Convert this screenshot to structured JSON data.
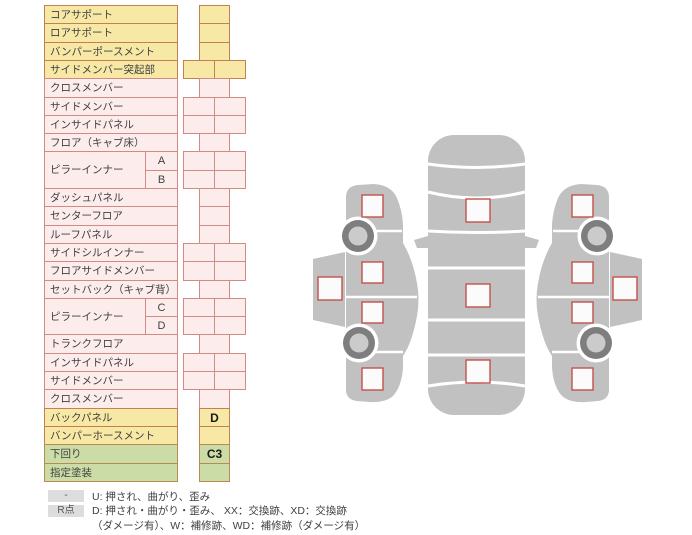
{
  "colors": {
    "yellow": {
      "fill": "#F7E8A5",
      "border": "#C28153"
    },
    "pink": {
      "fill": "#FCEDEC",
      "border": "#D18B85"
    },
    "green": {
      "fill": "#CBDCA6",
      "border": "#B98B52"
    },
    "car_gray": "#C1C1C1",
    "wheel_dark": "#7E7E7E",
    "wheel_inner": "#CBCBCB",
    "checkbox_fill": "#FBFBFB",
    "checkbox_border": "#C4504B",
    "badge_bg": "#DDDDDD"
  },
  "table": {
    "rows": [
      {
        "label": "コアサポート",
        "color": "yellow",
        "cells": "single",
        "value": ""
      },
      {
        "label": "ロアサポート",
        "color": "yellow",
        "cells": "single",
        "value": ""
      },
      {
        "label": "バンパーポースメント",
        "color": "yellow",
        "cells": "single",
        "value": ""
      },
      {
        "label": "サイドメンバー突起部",
        "color": "yellow",
        "cells": "double",
        "value": ""
      },
      {
        "label": "クロスメンバー",
        "color": "pink",
        "cells": "single",
        "value": ""
      },
      {
        "label": "サイドメンバー",
        "color": "pink",
        "cells": "double",
        "value": ""
      },
      {
        "label": "インサイドパネル",
        "color": "pink",
        "cells": "double",
        "value": ""
      },
      {
        "label": "フロア（キャブ床）",
        "color": "pink",
        "cells": "single",
        "value": ""
      },
      {
        "label": "ピラーインナー",
        "labelspan": 2,
        "sub": "A",
        "color": "pink",
        "cells": "double",
        "value": ""
      },
      {
        "sub": "B",
        "color": "pink",
        "cells": "double",
        "value": ""
      },
      {
        "label": "ダッシュパネル",
        "color": "pink",
        "cells": "single",
        "value": ""
      },
      {
        "label": "センターフロア",
        "color": "pink",
        "cells": "single",
        "value": ""
      },
      {
        "label": "ルーフパネル",
        "color": "pink",
        "cells": "single",
        "value": ""
      },
      {
        "label": "サイドシルインナー",
        "color": "pink",
        "cells": "double",
        "value": ""
      },
      {
        "label": "フロアサイドメンバー",
        "color": "pink",
        "cells": "double",
        "value": ""
      },
      {
        "label": "セットバック（キャブ背）",
        "color": "pink",
        "cells": "single",
        "value": ""
      },
      {
        "label": "ピラーインナー",
        "labelspan": 2,
        "sub": "C",
        "color": "pink",
        "cells": "double",
        "value": ""
      },
      {
        "sub": "D",
        "color": "pink",
        "cells": "double",
        "value": ""
      },
      {
        "label": "トランクフロア",
        "color": "pink",
        "cells": "single",
        "value": ""
      },
      {
        "label": "インサイドパネル",
        "color": "pink",
        "cells": "double",
        "value": ""
      },
      {
        "label": "サイドメンバー",
        "color": "pink",
        "cells": "double",
        "value": ""
      },
      {
        "label": "クロスメンバー",
        "color": "pink",
        "cells": "single",
        "value": ""
      },
      {
        "label": "バックパネル",
        "color": "yellow",
        "cells": "single",
        "value": "D"
      },
      {
        "label": "バンパーホースメント",
        "color": "yellow",
        "cells": "single",
        "value": ""
      },
      {
        "label": "下回り",
        "color": "green",
        "cells": "single",
        "value": "C3"
      },
      {
        "label": "指定塗装",
        "color": "green",
        "cells": "single",
        "value": ""
      }
    ]
  },
  "legend": {
    "badge1": "-",
    "line1": "U: 押され、曲がり、歪み",
    "badge2": "R点",
    "line2": "D: 押され・曲がり・歪み、 XX：交換跡、XD：交換跡",
    "line3": "（ダメージ有）、W：補修跡、WD：補修跡（ダメージ有）"
  },
  "diagram": {
    "views": [
      {
        "name": "side-view-left",
        "checkboxes": 5,
        "wheels": 2
      },
      {
        "name": "top-view",
        "checkboxes": 3
      },
      {
        "name": "side-view-right",
        "checkboxes": 5,
        "wheels": 2
      }
    ]
  }
}
